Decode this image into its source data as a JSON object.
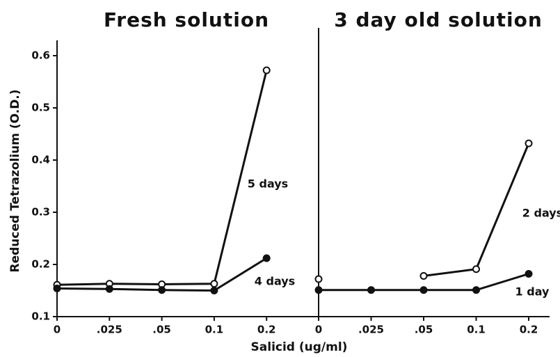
{
  "chart_data": [
    {
      "type": "line",
      "title": "Fresh solution",
      "ylabel": "Reduced Tetrazolium (O.D.)",
      "categories": [
        "0",
        ".025",
        ".05",
        "0.1",
        "0.2"
      ],
      "ylim": [
        0.1,
        0.6
      ],
      "yticks": [
        0.1,
        0.2,
        0.3,
        0.4,
        0.5,
        0.6
      ],
      "series": [
        {
          "name": "5 days",
          "color": "#111",
          "marker": "open",
          "values": [
            0.161,
            0.163,
            0.162,
            0.163,
            0.572
          ]
        },
        {
          "name": "4 days",
          "color": "#111",
          "marker": "filled",
          "values": [
            0.154,
            0.153,
            0.151,
            0.15,
            0.212
          ]
        }
      ]
    },
    {
      "type": "line",
      "title": "3 day old solution",
      "xlabel": "Salicid  (ug/ml)",
      "categories": [
        "0",
        ".025",
        ".05",
        "0.1",
        "0.2"
      ],
      "ylim": [
        0.1,
        0.6
      ],
      "series": [
        {
          "name": "2 days",
          "color": "#111",
          "marker": "open",
          "values": [
            0.172,
            null,
            0.178,
            0.191,
            0.432
          ]
        },
        {
          "name": "1 day",
          "color": "#111",
          "marker": "filled",
          "values": [
            0.151,
            0.151,
            0.151,
            0.151,
            0.182
          ]
        }
      ]
    }
  ]
}
